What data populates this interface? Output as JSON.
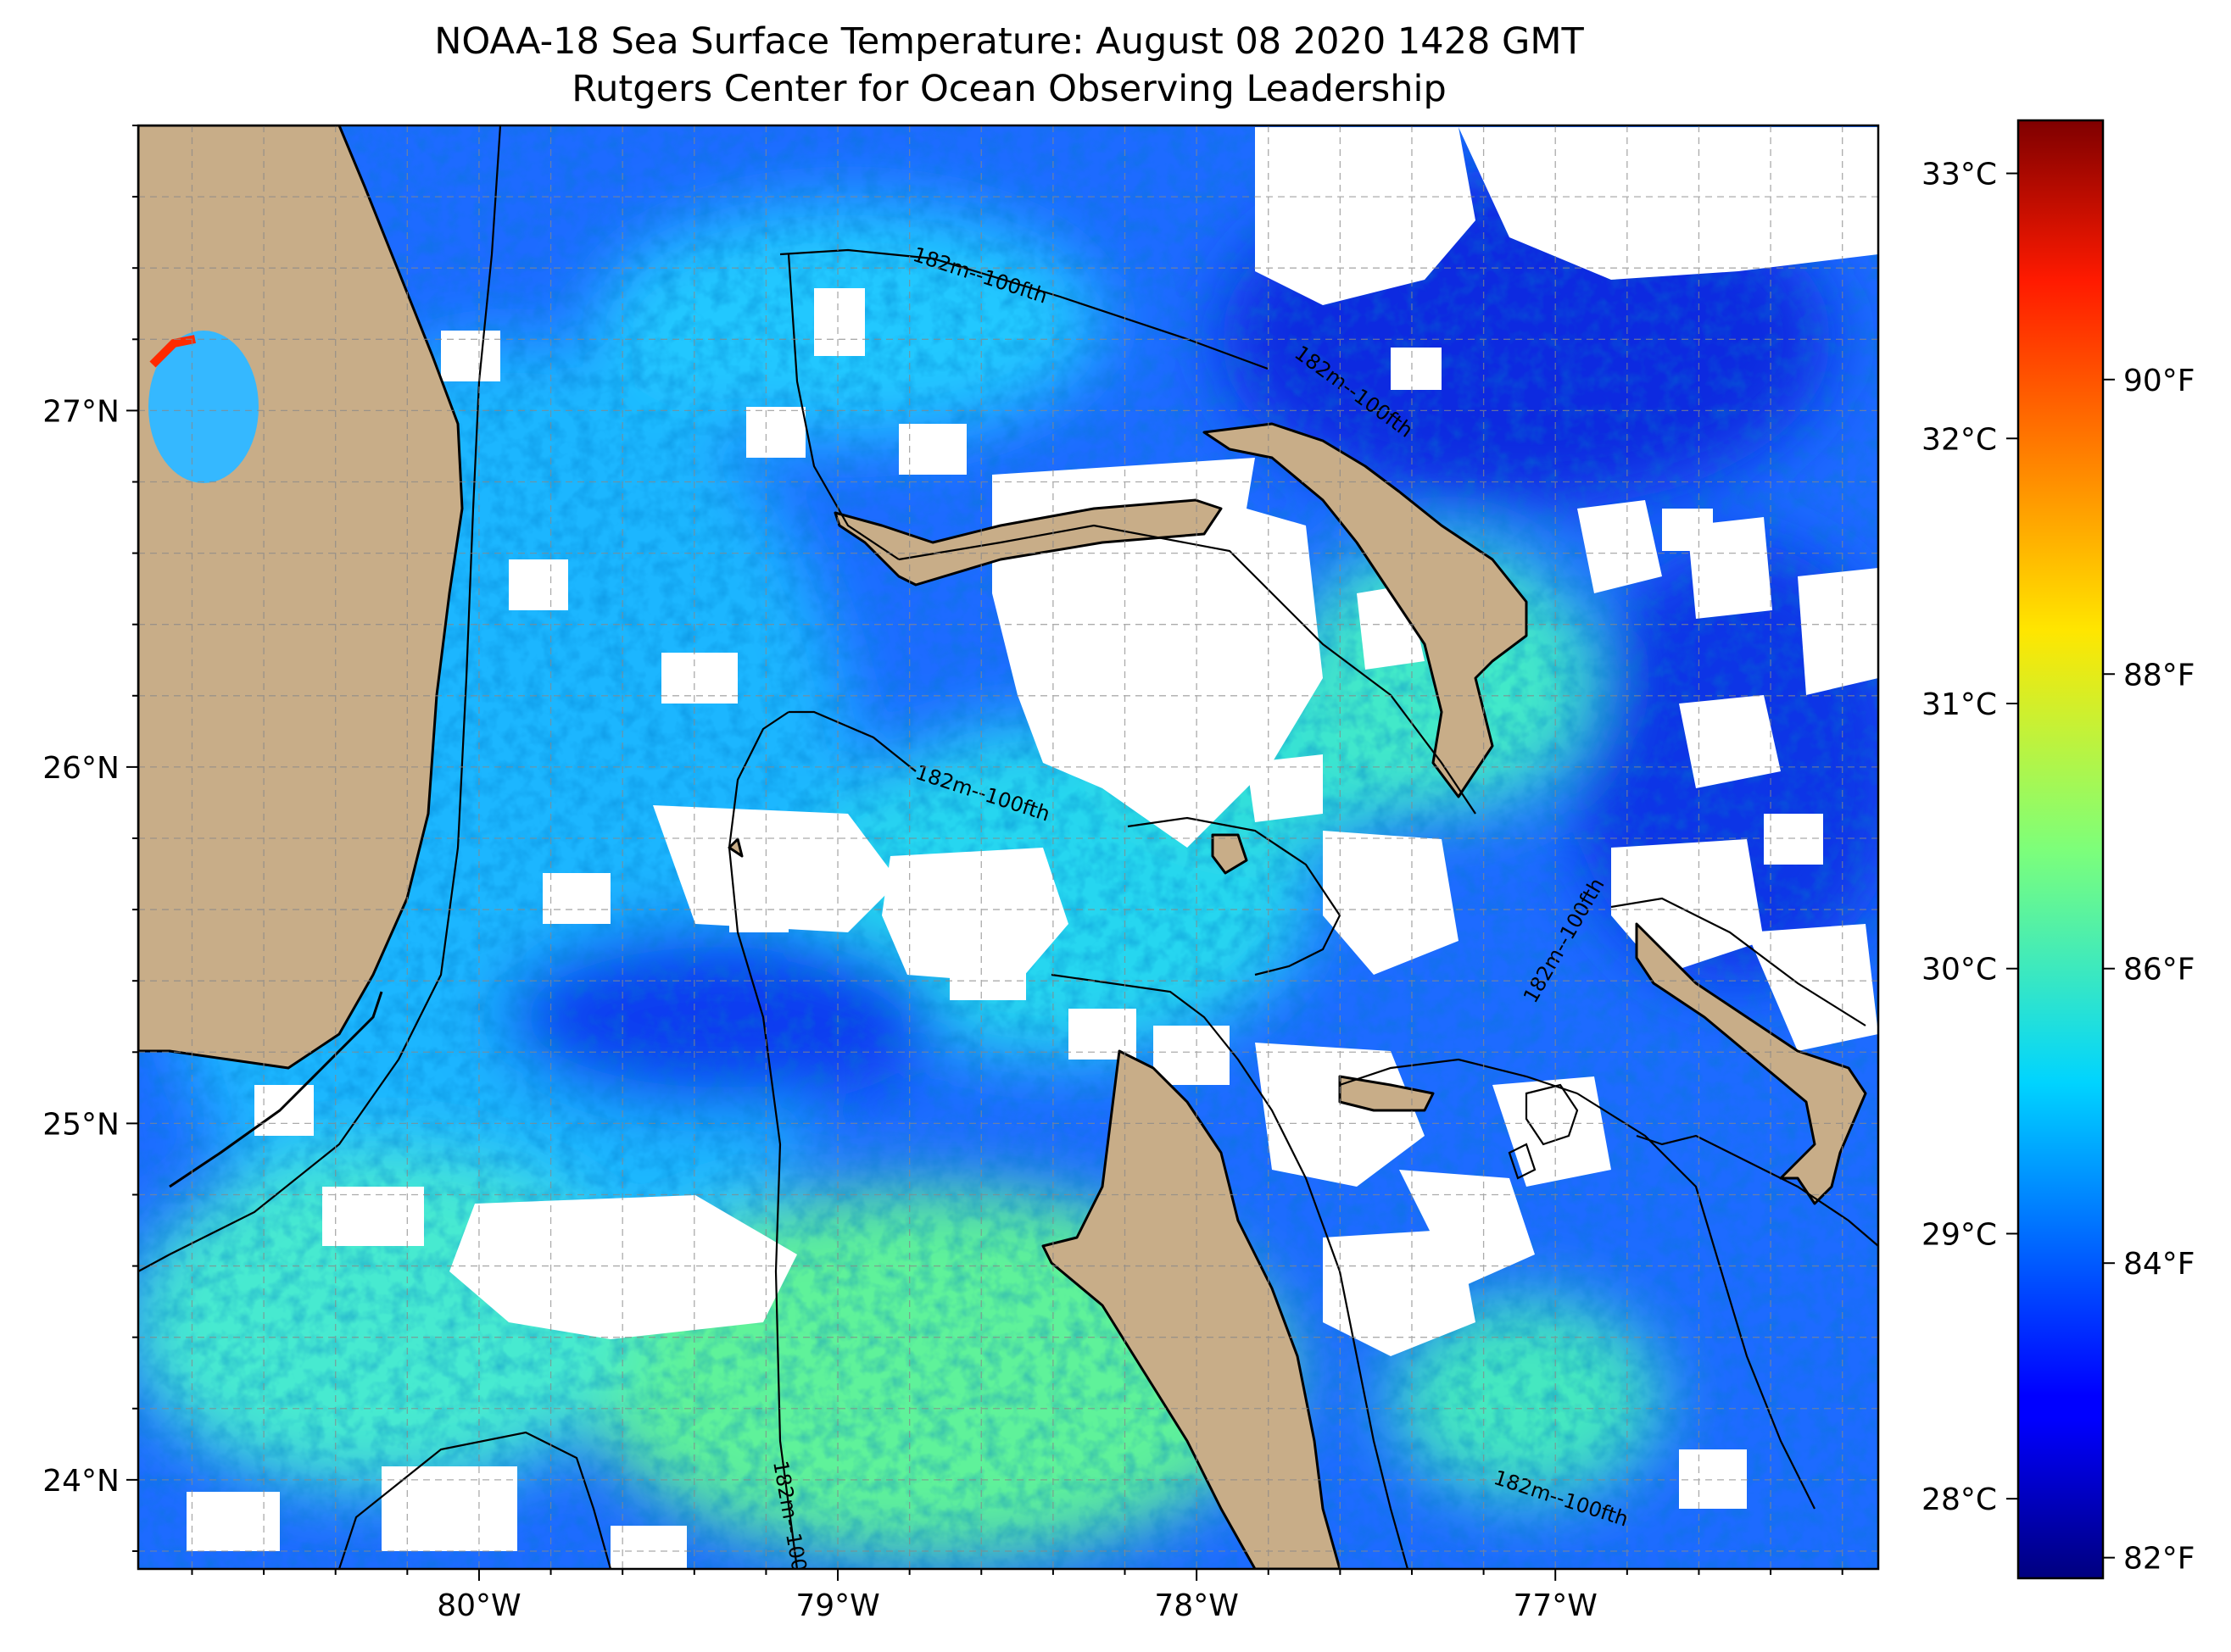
{
  "title": "NOAA-18 Sea Surface Temperature: August 08 2020 1428 GMT",
  "subtitle": "Rutgers Center for Ocean Observing Leadership",
  "map": {
    "lon_range": [
      -80.95,
      -76.1
    ],
    "lat_range": [
      23.75,
      27.8
    ],
    "lon_ticks": [
      {
        "value": -80,
        "label": "80°W"
      },
      {
        "value": -79,
        "label": "79°W"
      },
      {
        "value": -78,
        "label": "78°W"
      },
      {
        "value": -77,
        "label": "77°W"
      }
    ],
    "lat_ticks": [
      {
        "value": 24,
        "label": "24°N"
      },
      {
        "value": 25,
        "label": "25°N"
      },
      {
        "value": 26,
        "label": "26°N"
      },
      {
        "value": 27,
        "label": "27°N"
      }
    ],
    "gridlines": true,
    "land_color": "#c8ad88",
    "no_data_color": "#ffffff",
    "isobath_label": "182m--100fth"
  },
  "colorbar": {
    "colormap": "jet",
    "range_c": [
      27.7,
      33.2
    ],
    "celsius_ticks": [
      {
        "value": 28,
        "label": "28°C"
      },
      {
        "value": 29,
        "label": "29°C"
      },
      {
        "value": 30,
        "label": "30°C"
      },
      {
        "value": 31,
        "label": "31°C"
      },
      {
        "value": 32,
        "label": "32°C"
      },
      {
        "value": 33,
        "label": "33°C"
      }
    ],
    "fahrenheit_ticks": [
      {
        "value": 82,
        "label": "82°F"
      },
      {
        "value": 84,
        "label": "84°F"
      },
      {
        "value": 86,
        "label": "86°F"
      },
      {
        "value": 88,
        "label": "88°F"
      },
      {
        "value": 90,
        "label": "90°F"
      }
    ]
  }
}
